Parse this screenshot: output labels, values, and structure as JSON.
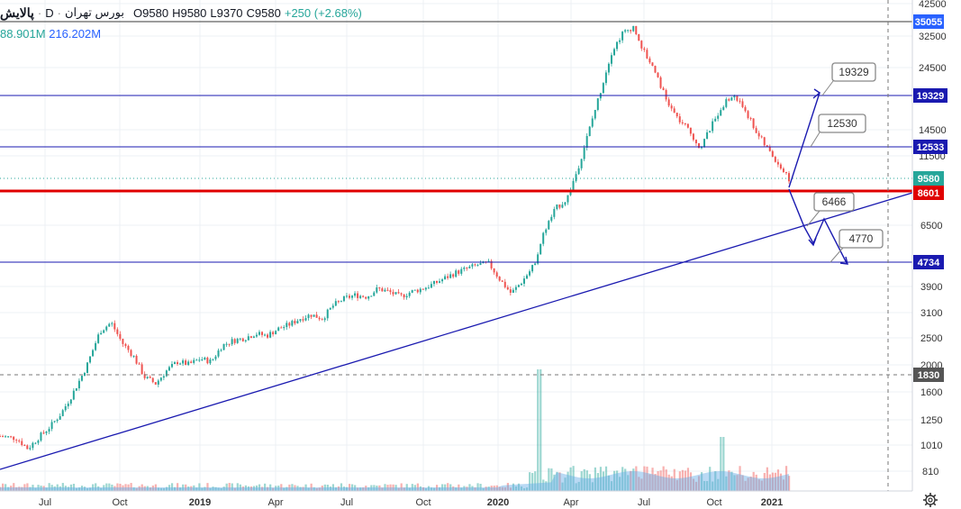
{
  "header": {
    "symbol": "پالایش",
    "separator": "·",
    "interval": "D",
    "exchange": "بورس تهران",
    "open": "O9580",
    "high": "H9580",
    "low": "L9370",
    "close": "C9580",
    "change": "+250 (+2.68%)"
  },
  "volume_legend": {
    "value_a": "88.901M",
    "value_b": "216.202M"
  },
  "colors": {
    "up": "#26a69a",
    "down": "#ef5350",
    "line": "#1a1ab0",
    "support": "#e00000",
    "accent": "#2962ff"
  },
  "chart_data": {
    "type": "candlestick",
    "scale": "log",
    "y_ticks": [
      42500,
      32500,
      24500,
      19329,
      14500,
      12533,
      11500,
      9580,
      8601,
      6500,
      4734,
      3900,
      3100,
      2500,
      2000,
      1830,
      1600,
      1250,
      1010,
      810
    ],
    "x_ticks": [
      "Jul",
      "Oct",
      "2019",
      "Apr",
      "Jul",
      "Oct",
      "2020",
      "Apr",
      "Jul",
      "Oct",
      "2021"
    ],
    "price_labels": [
      {
        "value": "35055",
        "color": "#2962ff"
      },
      {
        "value": "19329",
        "color": "#1a1ab0"
      },
      {
        "value": "12533",
        "color": "#1a1ab0"
      },
      {
        "value": "9580",
        "color": "#26a69a"
      },
      {
        "value": "8601",
        "color": "#e00000"
      },
      {
        "value": "4734",
        "color": "#1a1ab0"
      },
      {
        "value": "1830",
        "color": "#555555"
      }
    ],
    "horizontal_levels": [
      {
        "value": 35055,
        "style": "solid-dark"
      },
      {
        "value": 19329,
        "style": "solid-blue"
      },
      {
        "value": 12533,
        "style": "solid-blue"
      },
      {
        "value": 9580,
        "style": "dotted-green"
      },
      {
        "value": 8601,
        "style": "solid-red"
      },
      {
        "value": 4734,
        "style": "solid-blue"
      },
      {
        "value": 1830,
        "style": "dashed-gray"
      }
    ],
    "annotations": [
      {
        "text": "19329"
      },
      {
        "text": "12530"
      },
      {
        "text": "6466"
      },
      {
        "text": "4770"
      }
    ],
    "price_path": [
      [
        0,
        1090
      ],
      [
        0.03,
        1070
      ],
      [
        0.05,
        980
      ],
      [
        0.07,
        1080
      ],
      [
        0.09,
        1180
      ],
      [
        0.11,
        1320
      ],
      [
        0.13,
        1550
      ],
      [
        0.155,
        1950
      ],
      [
        0.18,
        2650
      ],
      [
        0.2,
        2850
      ],
      [
        0.22,
        2400
      ],
      [
        0.24,
        2150
      ],
      [
        0.26,
        1800
      ],
      [
        0.28,
        1700
      ],
      [
        0.3,
        1900
      ],
      [
        0.32,
        2050
      ],
      [
        0.34,
        2000
      ],
      [
        0.36,
        2100
      ],
      [
        0.38,
        2050
      ],
      [
        0.4,
        2350
      ],
      [
        0.42,
        2450
      ],
      [
        0.44,
        2500
      ],
      [
        0.46,
        2600
      ],
      [
        0.48,
        2550
      ],
      [
        0.5,
        2700
      ],
      [
        0.52,
        2800
      ],
      [
        0.54,
        2950
      ],
      [
        0.56,
        3050
      ],
      [
        0.58,
        2950
      ],
      [
        0.6,
        3300
      ],
      [
        0.62,
        3500
      ],
      [
        0.64,
        3600
      ],
      [
        0.66,
        3550
      ],
      [
        0.68,
        3800
      ],
      [
        0.7,
        3700
      ],
      [
        0.72,
        3550
      ],
      [
        0.74,
        3700
      ],
      [
        0.76,
        3800
      ],
      [
        0.78,
        3950
      ],
      [
        0.8,
        4150
      ],
      [
        0.82,
        4350
      ],
      [
        0.84,
        4500
      ],
      [
        0.86,
        4650
      ],
      [
        0.88,
        4700
      ],
      [
        0.9,
        4100
      ],
      [
        0.92,
        3650
      ],
      [
        0.94,
        4050
      ],
      [
        0.96,
        4600
      ],
      [
        0.98,
        6200
      ],
      [
        1.0,
        7500
      ],
      [
        1.02,
        8100
      ],
      [
        1.04,
        10500
      ],
      [
        1.06,
        14500
      ],
      [
        1.08,
        20000
      ],
      [
        1.1,
        28000
      ],
      [
        1.12,
        33000
      ],
      [
        1.14,
        35000
      ],
      [
        1.16,
        28000
      ],
      [
        1.18,
        24000
      ],
      [
        1.2,
        18500
      ],
      [
        1.22,
        16000
      ],
      [
        1.24,
        14500
      ],
      [
        1.26,
        12500
      ],
      [
        1.28,
        15000
      ],
      [
        1.3,
        18000
      ],
      [
        1.32,
        19500
      ],
      [
        1.34,
        17500
      ],
      [
        1.36,
        14500
      ],
      [
        1.38,
        12500
      ],
      [
        1.4,
        11000
      ],
      [
        1.42,
        9600
      ]
    ]
  }
}
